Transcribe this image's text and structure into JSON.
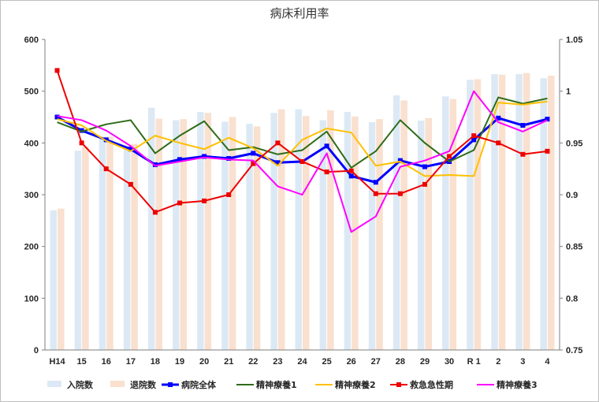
{
  "chart_data": {
    "type": "bar",
    "title": "病床利用率",
    "categories": [
      "H14",
      "15",
      "16",
      "17",
      "18",
      "19",
      "20",
      "21",
      "22",
      "23",
      "24",
      "25",
      "26",
      "27",
      "28",
      "29",
      "30",
      "R 1",
      "2",
      "3",
      "4"
    ],
    "y_left": {
      "min": 0,
      "max": 600,
      "ticks": [
        0,
        100,
        200,
        300,
        400,
        500,
        600
      ]
    },
    "y_right": {
      "min": 0.75,
      "max": 1.05,
      "ticks": [
        "0.75",
        "0.8",
        "0.85",
        "0.9",
        "0.95",
        "1",
        "1.05"
      ]
    },
    "bar_series": [
      {
        "name": "入院数",
        "color": "#dce9f5",
        "axis": "left",
        "values": [
          270,
          385,
          412,
          395,
          468,
          444,
          460,
          441,
          437,
          458,
          465,
          444,
          460,
          440,
          492,
          443,
          490,
          522,
          533,
          533,
          525
        ]
      },
      {
        "name": "退院数",
        "color": "#f9e0cf",
        "axis": "left",
        "values": [
          273,
          393,
          412,
          398,
          447,
          446,
          458,
          450,
          432,
          465,
          452,
          463,
          451,
          446,
          482,
          448,
          485,
          523,
          532,
          535,
          530
        ]
      }
    ],
    "line_series": [
      {
        "name": "病院全体",
        "color": "#0000ff",
        "marker": "square",
        "width": 3,
        "axis": "right",
        "values": [
          0.975,
          0.962,
          0.953,
          0.944,
          0.929,
          0.934,
          0.937,
          0.935,
          0.94,
          0.931,
          0.932,
          0.947,
          0.918,
          0.912,
          0.933,
          0.927,
          0.932,
          0.953,
          0.974,
          0.967,
          0.973
        ]
      },
      {
        "name": "精神療養1",
        "color": "#2e6b17",
        "marker": "none",
        "width": 2,
        "axis": "right",
        "values": [
          0.97,
          0.961,
          0.968,
          0.972,
          0.94,
          0.957,
          0.971,
          0.943,
          0.946,
          0.939,
          0.943,
          0.961,
          0.926,
          0.942,
          0.972,
          0.95,
          0.932,
          0.943,
          0.994,
          0.988,
          0.993
        ]
      },
      {
        "name": "精神療養2",
        "color": "#ffc000",
        "marker": "none",
        "width": 2,
        "axis": "right",
        "values": [
          0.973,
          0.967,
          0.952,
          0.942,
          0.957,
          0.95,
          0.944,
          0.955,
          0.945,
          0.928,
          0.953,
          0.964,
          0.96,
          0.928,
          0.932,
          0.918,
          0.919,
          0.918,
          0.989,
          0.987,
          0.99
        ]
      },
      {
        "name": "救急急性期",
        "color": "#ee0000",
        "marker": "square",
        "width": 2,
        "axis": "right",
        "values": [
          1.02,
          0.95,
          0.925,
          0.91,
          0.883,
          0.892,
          0.894,
          0.9,
          0.93,
          0.95,
          0.932,
          0.922,
          0.923,
          0.901,
          0.901,
          0.91,
          0.937,
          0.957,
          0.95,
          0.939,
          0.942
        ]
      },
      {
        "name": "精神療養3",
        "color": "#ff00ff",
        "marker": "none",
        "width": 2,
        "axis": "right",
        "values": [
          0.976,
          0.972,
          0.962,
          0.947,
          0.928,
          0.932,
          0.936,
          0.934,
          0.933,
          0.908,
          0.9,
          0.94,
          0.864,
          0.879,
          0.927,
          0.933,
          0.942,
          1.0,
          0.97,
          0.961,
          0.972
        ]
      }
    ],
    "legend": {
      "position": "bottom",
      "items": [
        "入院数",
        "退院数",
        "病院全体",
        "精神療養1",
        "精神療養2",
        "救急急性期",
        "精神療養3"
      ]
    },
    "grid": false
  }
}
